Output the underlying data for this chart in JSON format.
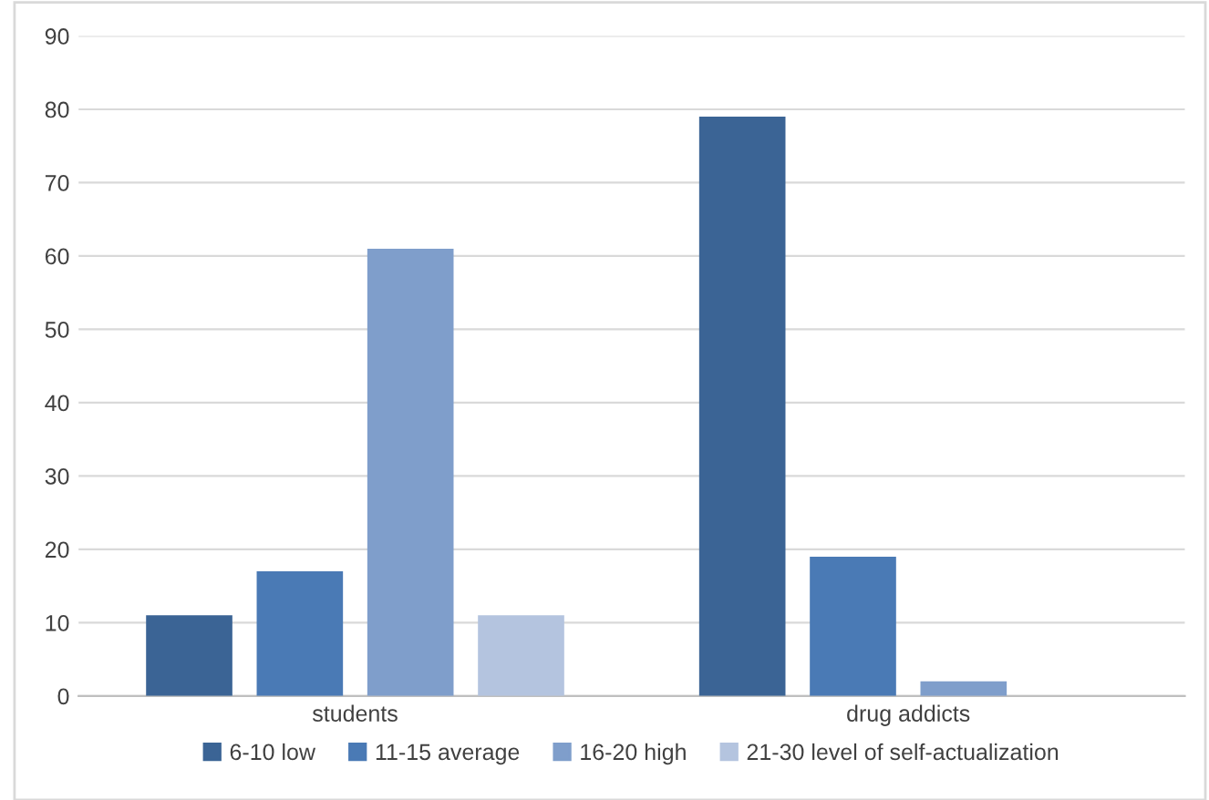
{
  "chart_data": {
    "type": "bar",
    "categories": [
      "students",
      "drug addicts"
    ],
    "series": [
      {
        "name": "6-10 low",
        "color": "#3b6495",
        "values": [
          11,
          79
        ]
      },
      {
        "name": "11-15 average",
        "color": "#4a7ab5",
        "values": [
          17,
          19
        ]
      },
      {
        "name": "16-20 high",
        "color": "#7f9ecb",
        "values": [
          61,
          2
        ]
      },
      {
        "name": "21-30 level of self-actualization",
        "color": "#b4c4df",
        "values": [
          11,
          null
        ]
      }
    ],
    "ylim": [
      0,
      90
    ],
    "yticks": [
      0,
      10,
      20,
      30,
      40,
      50,
      60,
      70,
      80,
      90
    ],
    "grid": "y",
    "legend": "bottom"
  }
}
